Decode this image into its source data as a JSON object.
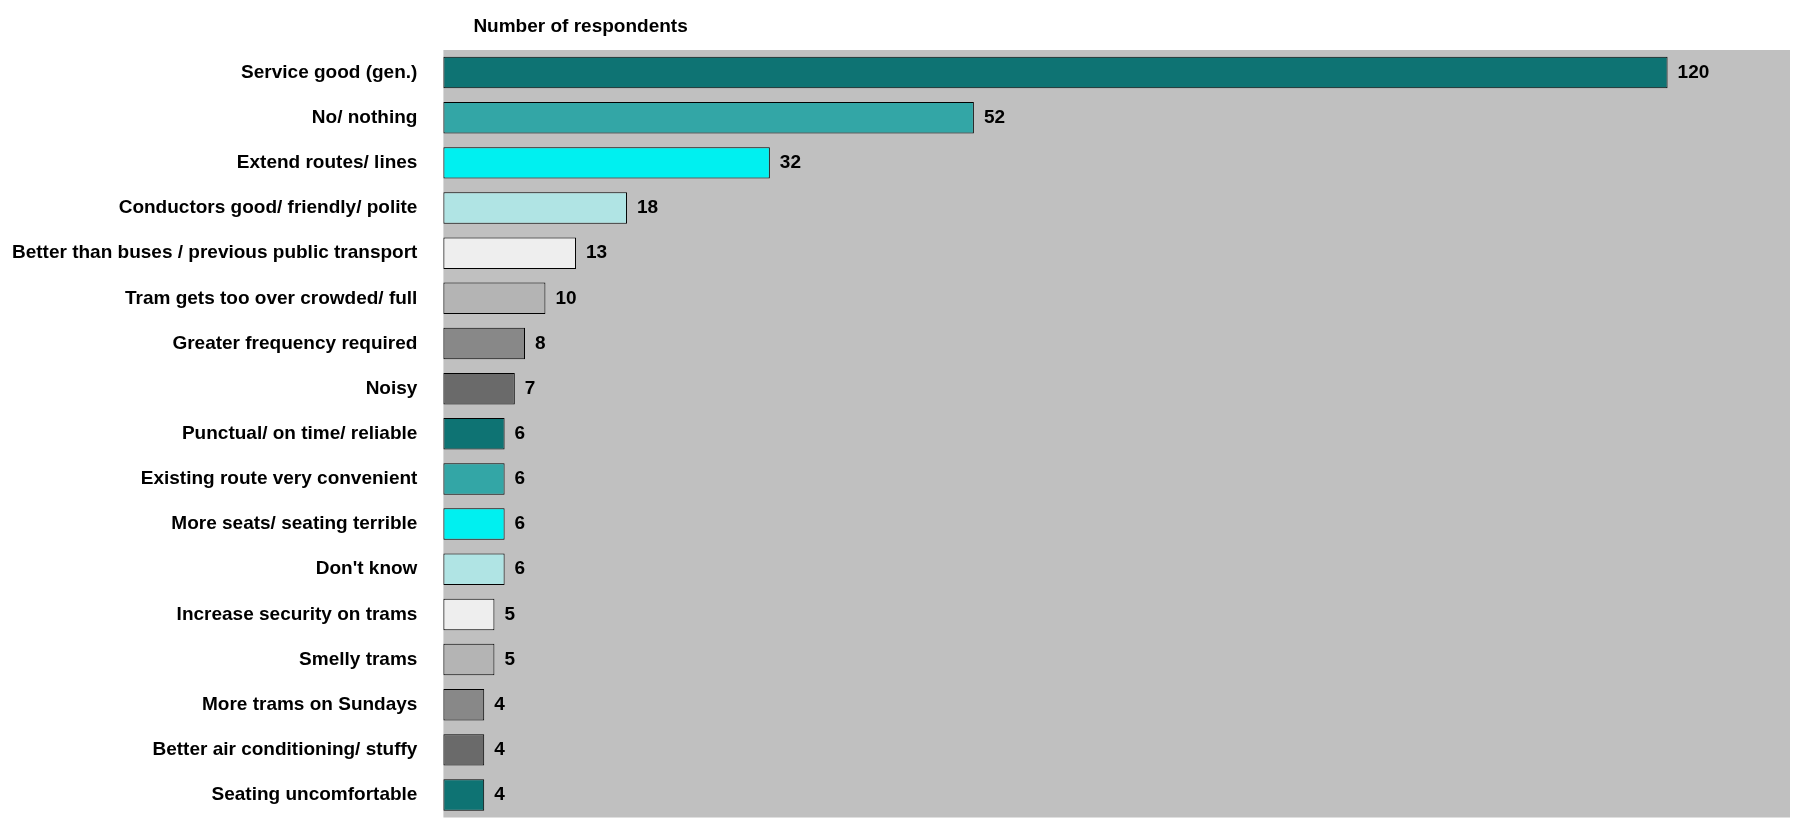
{
  "chart_data": {
    "type": "bar",
    "orientation": "horizontal",
    "title": "Number of respondents",
    "categories": [
      "Service good (gen.)",
      "No/ nothing",
      "Extend routes/ lines",
      "Conductors good/ friendly/ polite",
      "Better than buses / previous public transport",
      "Tram gets too over crowded/ full",
      "Greater frequency required",
      "Noisy",
      "Punctual/ on time/ reliable",
      "Existing route very convenient",
      "More seats/ seating terrible",
      "Don't know",
      "Increase security on trams",
      "Smelly trams",
      "More trams on Sundays",
      "Better air conditioning/ stuffy",
      "Seating uncomfortable"
    ],
    "values": [
      120,
      52,
      32,
      18,
      13,
      10,
      8,
      7,
      6,
      6,
      6,
      6,
      5,
      5,
      4,
      4,
      4
    ],
    "colors": [
      "#0e7373",
      "#33a6a6",
      "#00f0f0",
      "#b0e4e4",
      "#eeeeee",
      "#b4b4b4",
      "#888888",
      "#6a6a6a",
      "#0e7373",
      "#33a6a6",
      "#00f0f0",
      "#b0e4e4",
      "#eeeeee",
      "#b4b4b4",
      "#888888",
      "#6a6a6a",
      "#0e7373"
    ],
    "data_labels": true,
    "grid": false,
    "legend": false,
    "tick_labels": "y"
  }
}
